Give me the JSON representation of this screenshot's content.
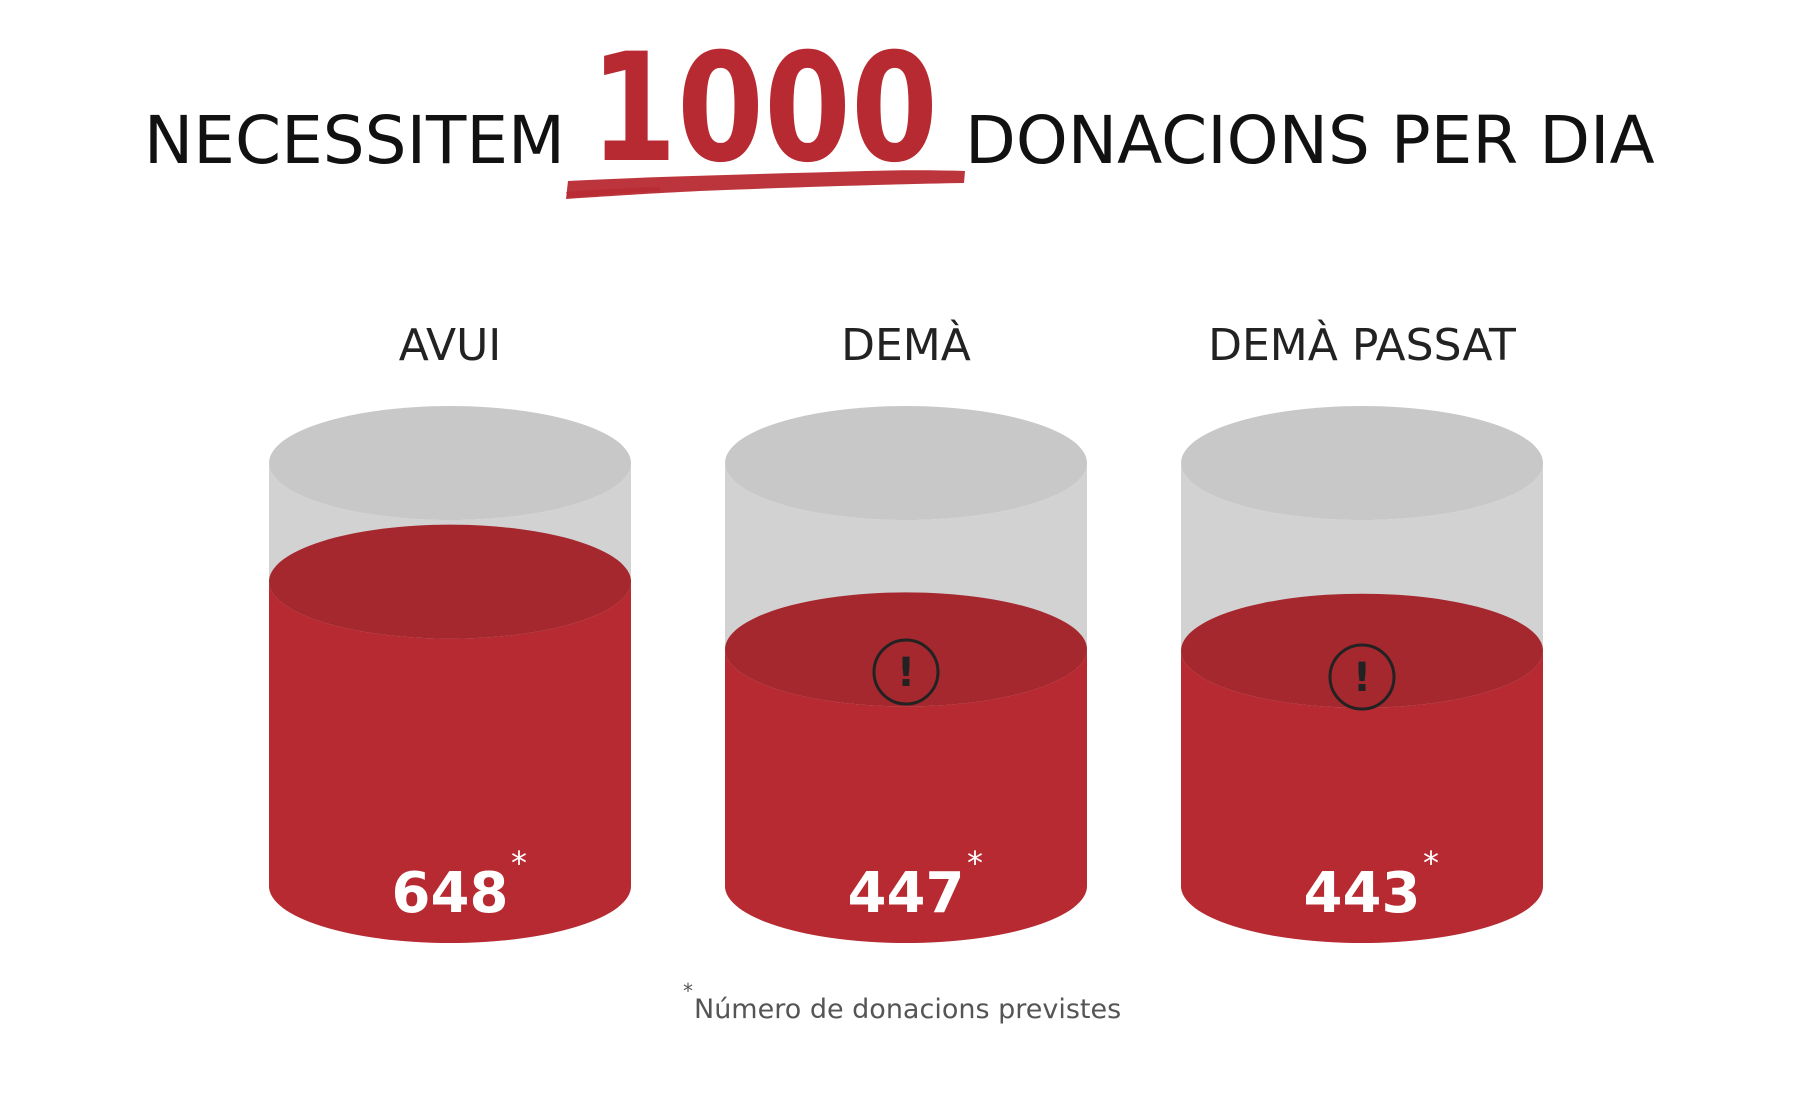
{
  "headline": {
    "prefix": "NECESSITEM",
    "number": "1000",
    "suffix": "DONACIONS PER DIA"
  },
  "colors": {
    "text": "#111111",
    "accent": "#b82a31",
    "accent_dark": "#a6282f",
    "empty": "#d2d2d2",
    "empty_top": "#c8c8c8",
    "alert": "#222222"
  },
  "chart_data": {
    "type": "bar",
    "target": 1000,
    "ylim": [
      0,
      1000
    ],
    "categories": [
      "AVUI",
      "DEMÀ",
      "DEMÀ PASSAT"
    ],
    "values": [
      648,
      447,
      443
    ],
    "value_labels": [
      "648",
      "447",
      "443"
    ],
    "marker": "*",
    "alerts": [
      false,
      true,
      true
    ],
    "alert_icon": "exclamation-circle-icon"
  },
  "footnote": {
    "marker": "*",
    "text": "Número de donacions previstes"
  }
}
